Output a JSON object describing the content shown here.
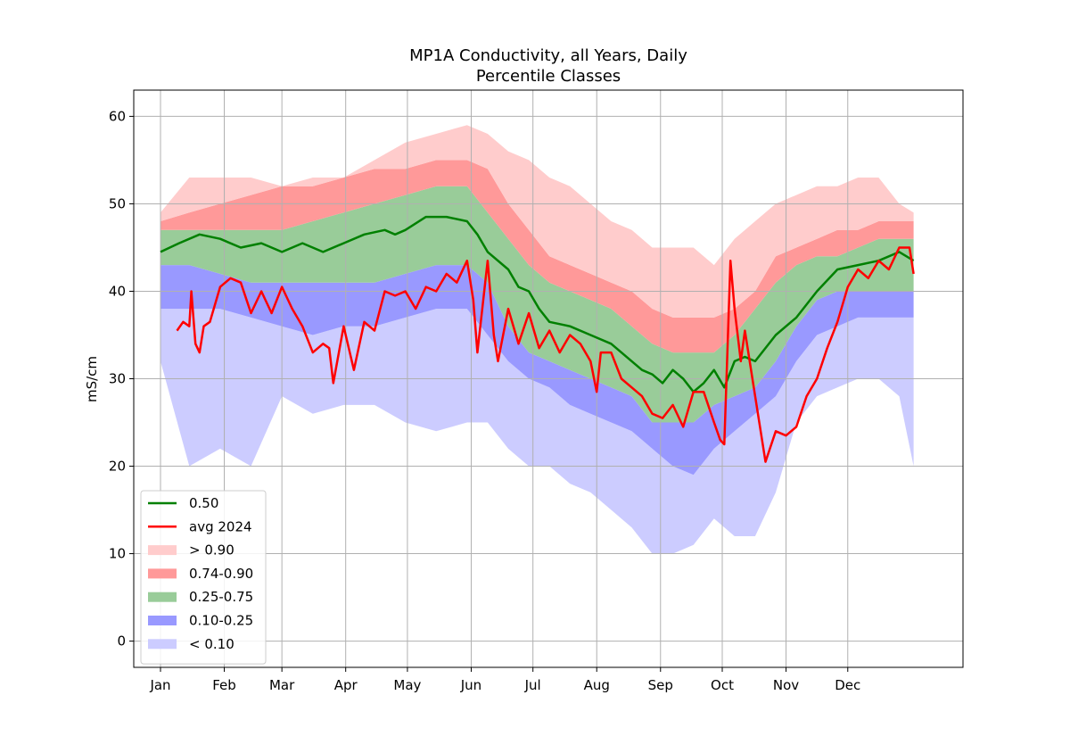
{
  "chart_data": {
    "type": "area",
    "title": "MP1A Conductivity, all Years, Daily",
    "subtitle": "Percentile Classes",
    "xlabel": "",
    "ylabel": "mS/cm",
    "x_unit": "day_of_year",
    "xlim": [
      -12,
      391
    ],
    "ylim": [
      -3,
      63
    ],
    "grid": true,
    "legend_position": "lower-left",
    "x_ticks": [
      {
        "label": "Jan",
        "x": 1
      },
      {
        "label": "Feb",
        "x": 32
      },
      {
        "label": "Mar",
        "x": 60
      },
      {
        "label": "Apr",
        "x": 91
      },
      {
        "label": "May",
        "x": 121
      },
      {
        "label": "Jun",
        "x": 152
      },
      {
        "label": "Jul",
        "x": 182
      },
      {
        "label": "Aug",
        "x": 213
      },
      {
        "label": "Sep",
        "x": 244
      },
      {
        "label": "Oct",
        "x": 274
      },
      {
        "label": "Nov",
        "x": 305
      },
      {
        "label": "Dec",
        "x": 335
      }
    ],
    "y_ticks": [
      0,
      10,
      20,
      30,
      40,
      50,
      60
    ],
    "x": [
      1,
      15,
      30,
      45,
      60,
      75,
      90,
      105,
      120,
      135,
      150,
      160,
      170,
      180,
      190,
      200,
      210,
      220,
      230,
      240,
      250,
      260,
      270,
      280,
      290,
      300,
      310,
      320,
      330,
      340,
      350,
      360,
      367
    ],
    "bands": [
      {
        "name": "< 0.10",
        "color": "#ccccff",
        "lower": [
          32,
          20,
          22,
          20,
          28,
          26,
          27,
          27,
          25,
          24,
          25,
          25,
          22,
          20,
          20,
          18,
          17,
          15,
          13,
          10,
          10,
          11,
          14,
          12,
          12,
          17,
          25,
          28,
          29,
          30,
          30,
          28,
          20
        ],
        "upper": [
          38,
          38,
          38,
          37,
          36,
          35,
          36,
          36,
          37,
          38,
          38,
          35,
          32,
          30,
          29,
          27,
          26,
          25,
          24,
          22,
          20,
          19,
          22,
          24,
          26,
          28,
          32,
          35,
          36,
          37,
          37,
          37,
          37
        ]
      },
      {
        "name": "0.10-0.25",
        "color": "#9999ff",
        "lower": [
          38,
          38,
          38,
          37,
          36,
          35,
          36,
          36,
          37,
          38,
          38,
          35,
          32,
          30,
          29,
          27,
          26,
          25,
          24,
          22,
          20,
          19,
          22,
          24,
          26,
          28,
          32,
          35,
          36,
          37,
          37,
          37,
          37
        ],
        "upper": [
          43,
          43,
          42,
          41,
          41,
          41,
          41,
          41,
          42,
          43,
          43,
          41,
          36,
          33,
          32,
          31,
          30,
          29,
          28,
          25,
          25,
          25,
          27,
          28,
          29,
          32,
          36,
          39,
          40,
          40,
          40,
          40,
          40
        ]
      },
      {
        "name": "0.25-0.75",
        "color": "#99cc99",
        "lower": [
          43,
          43,
          42,
          41,
          41,
          41,
          41,
          41,
          42,
          43,
          43,
          41,
          36,
          33,
          32,
          31,
          30,
          29,
          28,
          25,
          25,
          25,
          27,
          28,
          29,
          32,
          36,
          39,
          40,
          40,
          40,
          40,
          40
        ],
        "upper": [
          47,
          47,
          47,
          47,
          47,
          48,
          49,
          50,
          51,
          52,
          52,
          49,
          46,
          43,
          41,
          40,
          39,
          38,
          36,
          34,
          33,
          33,
          33,
          35,
          38,
          41,
          43,
          44,
          44,
          45,
          46,
          46,
          46
        ]
      },
      {
        "name": "0.74-0.90",
        "color": "#ff9999",
        "lower": [
          47,
          47,
          47,
          47,
          47,
          48,
          49,
          50,
          51,
          52,
          52,
          49,
          46,
          43,
          41,
          40,
          39,
          38,
          36,
          34,
          33,
          33,
          33,
          35,
          38,
          41,
          43,
          44,
          44,
          45,
          46,
          46,
          46
        ],
        "upper": [
          48,
          49,
          50,
          51,
          52,
          52,
          53,
          54,
          54,
          55,
          55,
          54,
          50,
          47,
          44,
          43,
          42,
          41,
          40,
          38,
          37,
          37,
          37,
          38,
          40,
          44,
          45,
          46,
          47,
          47,
          48,
          48,
          48
        ]
      },
      {
        "name": "> 0.90",
        "color": "#ffcccc",
        "lower": [
          48,
          49,
          50,
          51,
          52,
          52,
          53,
          54,
          54,
          55,
          55,
          54,
          50,
          47,
          44,
          43,
          42,
          41,
          40,
          38,
          37,
          37,
          37,
          38,
          40,
          44,
          45,
          46,
          47,
          47,
          48,
          48,
          48
        ],
        "upper": [
          49,
          53,
          53,
          53,
          52,
          53,
          53,
          55,
          57,
          58,
          59,
          58,
          56,
          55,
          53,
          52,
          50,
          48,
          47,
          45,
          45,
          45,
          43,
          46,
          48,
          50,
          51,
          52,
          52,
          53,
          53,
          50,
          49
        ]
      }
    ],
    "series": [
      {
        "name": "0.50",
        "color": "#008000",
        "x": [
          1,
          10,
          20,
          30,
          40,
          50,
          60,
          70,
          80,
          90,
          100,
          110,
          115,
          120,
          130,
          140,
          150,
          155,
          160,
          170,
          175,
          180,
          185,
          190,
          200,
          210,
          220,
          230,
          235,
          240,
          245,
          250,
          255,
          260,
          265,
          270,
          275,
          280,
          285,
          290,
          300,
          310,
          320,
          330,
          340,
          350,
          360,
          367
        ],
        "values": [
          44.5,
          45.5,
          46.5,
          46,
          45,
          45.5,
          44.5,
          45.5,
          44.5,
          45.5,
          46.5,
          47,
          46.5,
          47,
          48.5,
          48.5,
          48,
          46.5,
          44.5,
          42.5,
          40.5,
          40,
          38,
          36.5,
          36,
          35,
          34,
          32,
          31,
          30.5,
          29.5,
          31,
          30,
          28.5,
          29.5,
          31,
          29,
          32,
          32.5,
          32,
          35,
          37,
          40,
          42.5,
          43,
          43.5,
          44.5,
          43.5
        ]
      },
      {
        "name": "avg 2024",
        "color": "#ff0000",
        "x": [
          9,
          12,
          15,
          16,
          18,
          20,
          22,
          25,
          30,
          35,
          40,
          45,
          50,
          55,
          60,
          65,
          70,
          75,
          80,
          83,
          85,
          90,
          95,
          100,
          105,
          110,
          115,
          120,
          125,
          130,
          135,
          140,
          145,
          150,
          153,
          155,
          160,
          163,
          165,
          170,
          175,
          180,
          185,
          190,
          195,
          200,
          205,
          210,
          213,
          215,
          220,
          225,
          230,
          235,
          240,
          245,
          250,
          255,
          260,
          265,
          270,
          273,
          275,
          278,
          280,
          283,
          285,
          290,
          295,
          300,
          305,
          310,
          315,
          320,
          325,
          330,
          335,
          340,
          345,
          350,
          355,
          360,
          365,
          367
        ],
        "values": [
          35.5,
          36.5,
          36,
          40,
          34,
          33,
          36,
          36.5,
          40.5,
          41.5,
          41,
          37.5,
          40,
          37.5,
          40.5,
          38,
          36,
          33,
          34,
          33.5,
          29.5,
          36,
          31,
          36.5,
          35.5,
          40,
          39.5,
          40,
          38,
          40.5,
          40,
          42,
          41,
          43.5,
          39,
          33,
          43.5,
          35,
          32,
          38,
          34,
          37.5,
          33.5,
          35.5,
          33,
          35,
          34,
          32,
          28.5,
          33,
          33,
          30,
          29,
          28,
          26,
          25.5,
          27,
          24.5,
          28.5,
          28.5,
          25,
          23,
          22.5,
          43.5,
          38,
          32,
          35.5,
          28,
          20.5,
          24,
          23.5,
          24.5,
          28,
          30,
          33.5,
          36.5,
          40.5,
          42.5,
          41.5,
          43.5,
          42.5,
          45,
          45,
          42
        ]
      }
    ],
    "legend": [
      "0.50",
      "avg 2024",
      "> 0.90",
      "0.74-0.90",
      "0.25-0.75",
      "0.10-0.25",
      "< 0.10"
    ]
  }
}
